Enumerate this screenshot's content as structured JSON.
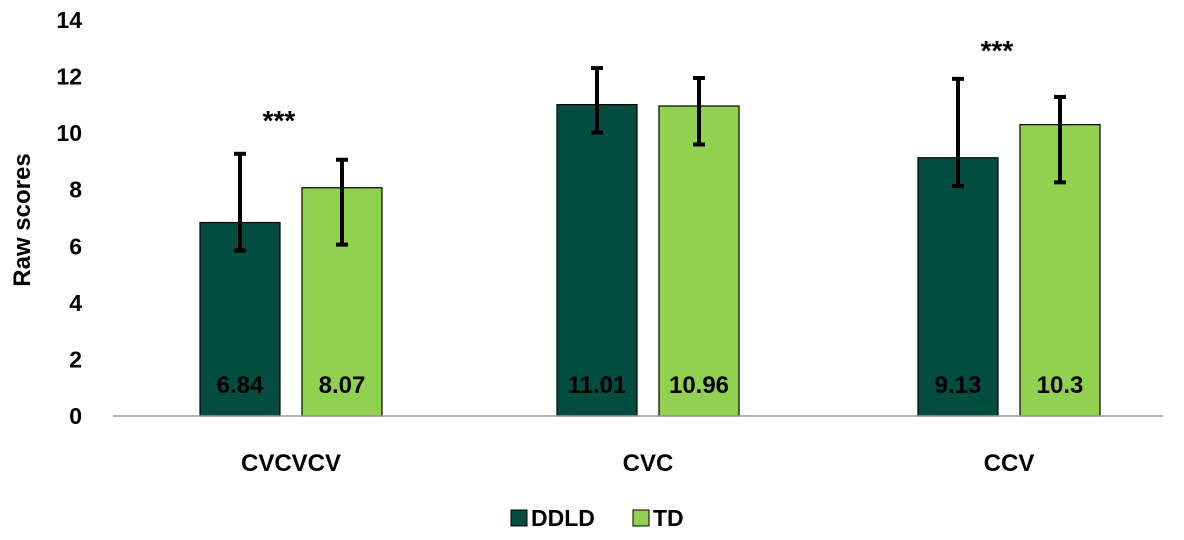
{
  "chart_data": {
    "type": "bar",
    "categories": [
      "CVCVCV",
      "CVC",
      "CCV"
    ],
    "series": [
      {
        "name": "DDLD",
        "values": [
          6.84,
          11.01,
          9.13
        ],
        "labels": [
          "6.84",
          "11.01",
          "9.13"
        ],
        "error_low": [
          5.85,
          10.02,
          8.13
        ],
        "error_high": [
          9.27,
          12.3,
          11.92
        ],
        "color": "#024d3f"
      },
      {
        "name": "TD",
        "values": [
          8.07,
          10.96,
          10.3
        ],
        "labels": [
          "8.07",
          "10.96",
          "10.3"
        ],
        "error_low": [
          6.06,
          9.6,
          8.26
        ],
        "error_high": [
          9.06,
          11.95,
          11.28
        ],
        "color": "#92d050"
      }
    ],
    "yticks": [
      "0",
      "2",
      "4",
      "6",
      "8",
      "10",
      "12",
      "14"
    ],
    "ylim": [
      0,
      14
    ],
    "ylabel": "Raw scores",
    "xlabel": "",
    "title": "",
    "annotations": [
      {
        "category": "CVCVCV",
        "text": "***"
      },
      {
        "category": "CCV",
        "text": "***"
      }
    ],
    "legend_position": "bottom",
    "grid": false
  }
}
